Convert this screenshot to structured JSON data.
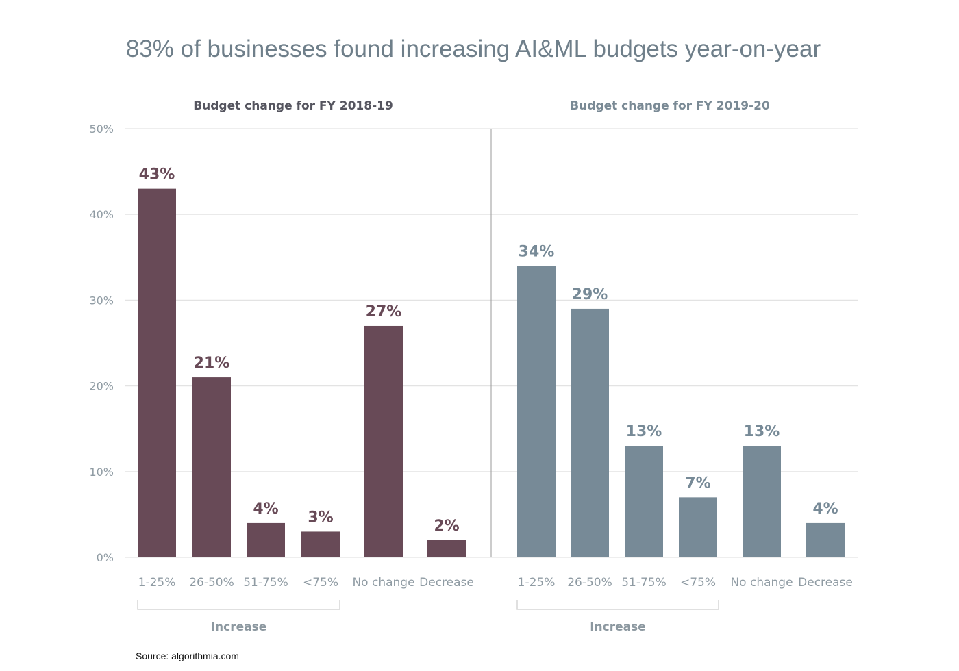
{
  "title": "83% of businesses found increasing AI&ML budgets year-on-year",
  "source": "Source: algorithmia.com",
  "colors": {
    "left": "#684a57",
    "right": "#778a97",
    "grid": "#e3e3e3",
    "axis_text": "#8f9ba3",
    "title": "#6f7f8a"
  },
  "chart_data": [
    {
      "type": "bar",
      "title": "Budget change for FY 2018-19",
      "categories": [
        "1-25%",
        "26-50%",
        "51-75%",
        "<75%",
        "No change",
        "Decrease"
      ],
      "values": [
        43,
        21,
        4,
        3,
        27,
        2
      ],
      "data_labels": [
        "43%",
        "21%",
        "4%",
        "3%",
        "27%",
        "2%"
      ],
      "group_label": "Increase",
      "ylim": [
        0,
        50
      ],
      "yticks": [
        "0%",
        "10%",
        "20%",
        "30%",
        "40%",
        "50%"
      ],
      "grid": true
    },
    {
      "type": "bar",
      "title": "Budget change for FY 2019-20",
      "categories": [
        "1-25%",
        "26-50%",
        "51-75%",
        "<75%",
        "No change",
        "Decrease"
      ],
      "values": [
        34,
        29,
        13,
        7,
        13,
        4
      ],
      "data_labels": [
        "34%",
        "29%",
        "13%",
        "7%",
        "13%",
        "4%"
      ],
      "group_label": "Increase",
      "ylim": [
        0,
        50
      ],
      "grid": true
    }
  ]
}
